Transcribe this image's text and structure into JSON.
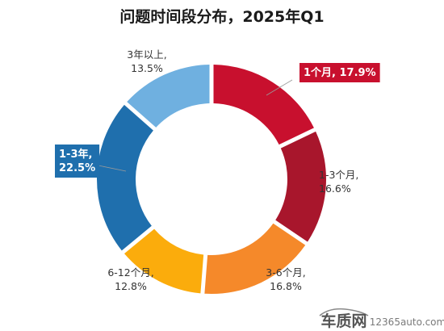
{
  "chart_data": {
    "type": "pie",
    "title": "问题时间段分布，2025年Q1",
    "slices": [
      {
        "label": "1个月,",
        "value": 17.9,
        "value_text": "17.9%",
        "color": "#c8102e",
        "highlight": true
      },
      {
        "label": "1-3个月,",
        "value": 16.6,
        "value_text": "16.6%",
        "color": "#a8162c",
        "highlight": false
      },
      {
        "label": "3-6个月,",
        "value": 16.8,
        "value_text": "16.8%",
        "color": "#f5892a",
        "highlight": false
      },
      {
        "label": "6-12个月,",
        "value": 12.8,
        "value_text": "12.8%",
        "color": "#fbac0c",
        "highlight": false
      },
      {
        "label": "1-3年,",
        "value": 22.5,
        "value_text": "22.5%",
        "color": "#1f6fad",
        "highlight": true
      },
      {
        "label": "3年以上,",
        "value": 13.5,
        "value_text": "13.5%",
        "color": "#6fb0e0",
        "highlight": false
      }
    ]
  },
  "watermark": {
    "brand": "车质网",
    "site": "12365auto.com"
  }
}
